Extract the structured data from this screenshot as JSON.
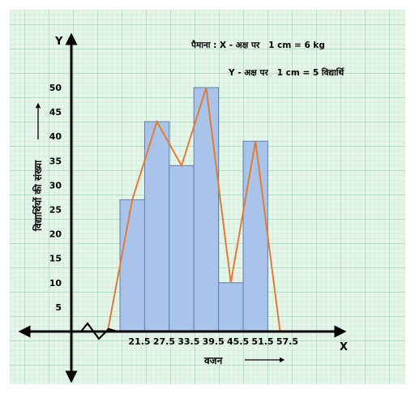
{
  "chart_data": {
    "type": "bar",
    "subtype": "histogram-with-frequency-polygon",
    "x_tick_labels": [
      "21.5",
      "27.5",
      "33.5",
      "39.5",
      "45.5",
      "51.5",
      "57.5"
    ],
    "bins": [
      {
        "from": 21.5,
        "to": 27.5,
        "value": 27
      },
      {
        "from": 27.5,
        "to": 33.5,
        "value": 43
      },
      {
        "from": 33.5,
        "to": 39.5,
        "value": 34
      },
      {
        "from": 39.5,
        "to": 45.5,
        "value": 50
      },
      {
        "from": 45.5,
        "to": 51.5,
        "value": 10
      },
      {
        "from": 51.5,
        "to": 57.5,
        "value": 39
      }
    ],
    "polygon": {
      "x": [
        18.5,
        24.5,
        30.5,
        36.5,
        42.5,
        48.5,
        54.5,
        60.5
      ],
      "y": [
        0,
        27,
        43,
        34,
        50,
        10,
        39,
        0
      ]
    },
    "y_ticks": [
      5,
      10,
      15,
      20,
      25,
      30,
      35,
      40,
      45,
      50
    ],
    "ylim": [
      0,
      55
    ],
    "xlabel": "वजन",
    "ylabel": "विद्यार्थियों की संख्या",
    "x_axis_letter": "X",
    "y_axis_letter": "Y",
    "scale_note": {
      "line1": "पैमाना : X - अक्ष पर   1 cm = 6 kg",
      "line2": "Y - अक्ष पर   1 cm = 5 विद्यार्थि"
    },
    "grid": true,
    "colors": {
      "background": "#e6f5e9",
      "grid_minor": "#b6e3c0",
      "grid_major": "#86cc97",
      "bar_fill": "#a9c4e8",
      "bar_stroke": "#5b7fb8",
      "polygon": "#e07b39",
      "axis": "#000000"
    }
  }
}
